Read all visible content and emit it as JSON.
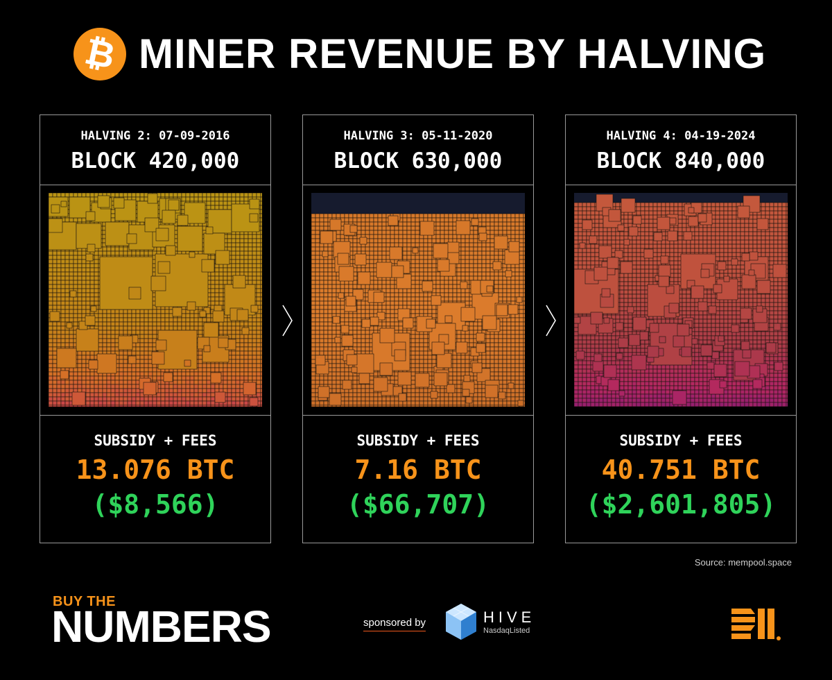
{
  "title": "MINER REVENUE BY HALVING",
  "logo_icon": "bitcoin-icon",
  "logo_glyph": "₿",
  "panels": [
    {
      "halving": "HALVING 2: 07-09-2016",
      "block": "BLOCK 420,000",
      "label": "SUBSIDY + FEES",
      "btc": "13.076 BTC",
      "usd": "($8,566)"
    },
    {
      "halving": "HALVING 3: 05-11-2020",
      "block": "BLOCK 630,000",
      "label": "SUBSIDY + FEES",
      "btc": "7.16 BTC",
      "usd": "($66,707)"
    },
    {
      "halving": "HALVING 4: 04-19-2024",
      "block": "BLOCK 840,000",
      "label": "SUBSIDY + FEES",
      "btc": "40.751 BTC",
      "usd": "($2,601,805)"
    }
  ],
  "source": "Source: mempool.space",
  "brand": {
    "line1": "BUY THE",
    "line2": "NUMBERS"
  },
  "sponsored": "sponsored by",
  "hive": {
    "name": "HIVE",
    "sub": "NasdaqListed"
  },
  "colors": {
    "bitcoin_orange": "#f7931a",
    "fiat_green": "#2fd35a",
    "panel_border": "#9a9a9a",
    "background": "#000000"
  }
}
